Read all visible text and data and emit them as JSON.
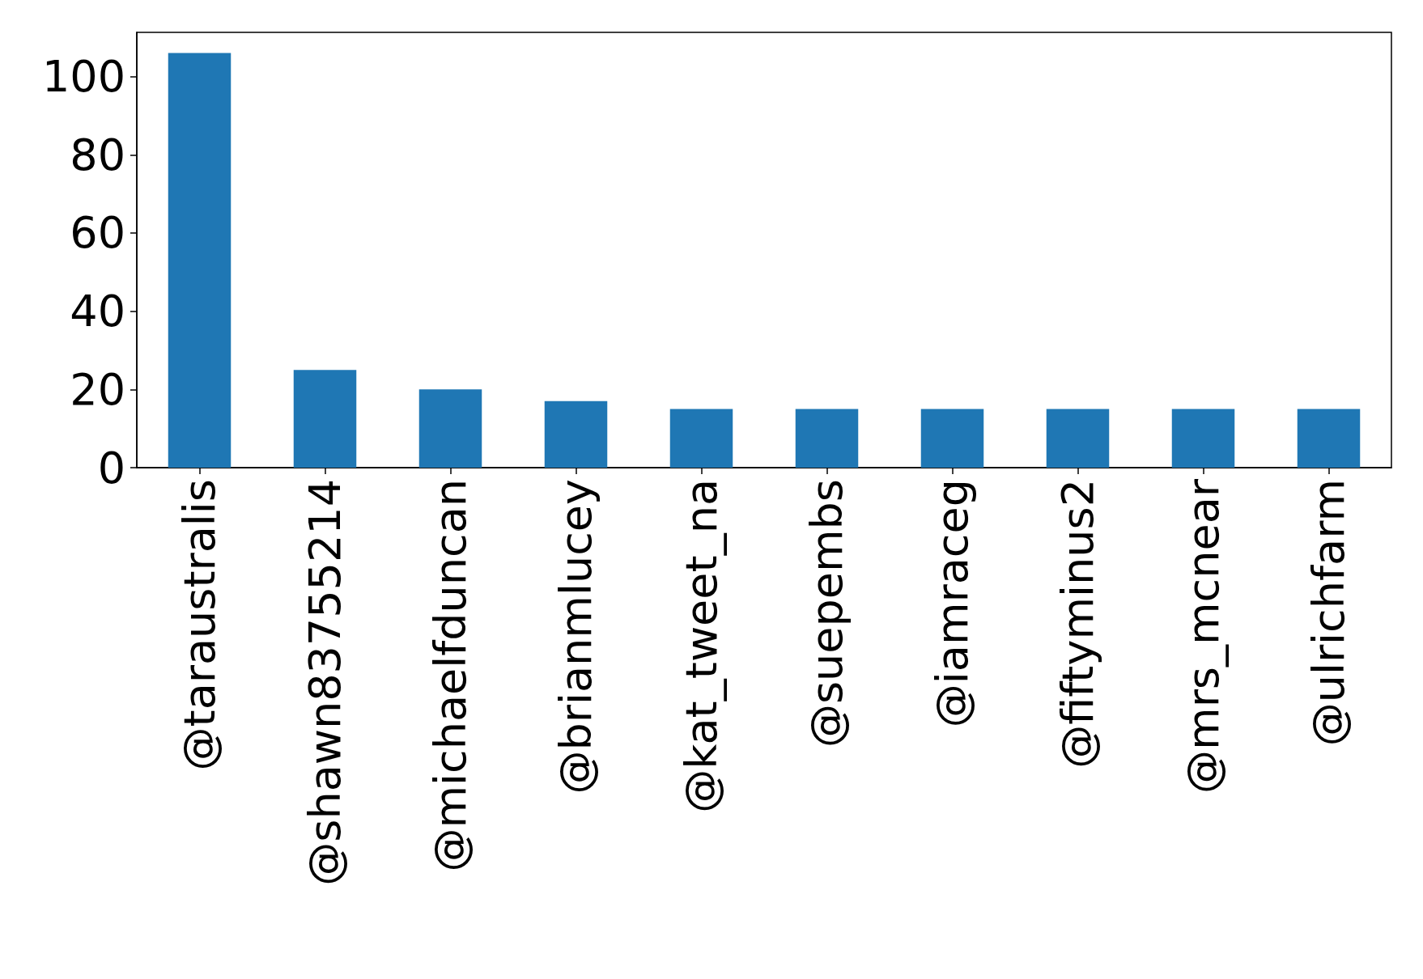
{
  "chart_data": {
    "type": "bar",
    "categories": [
      "@taraustralis",
      "@shawn83755214",
      "@michaelfduncan",
      "@brianmlucey",
      "@kat_tweet_na",
      "@suepembs",
      "@iamraceg",
      "@fiftyminus2",
      "@mrs_mcnear",
      "@ulrichfarm"
    ],
    "values": [
      106,
      25,
      20,
      17,
      15,
      15,
      15,
      15,
      15,
      15
    ],
    "color": "#1f77b4",
    "ylim": [
      0,
      111.3
    ],
    "yticks": [
      0,
      20,
      40,
      60,
      80,
      100
    ],
    "grid": false
  }
}
